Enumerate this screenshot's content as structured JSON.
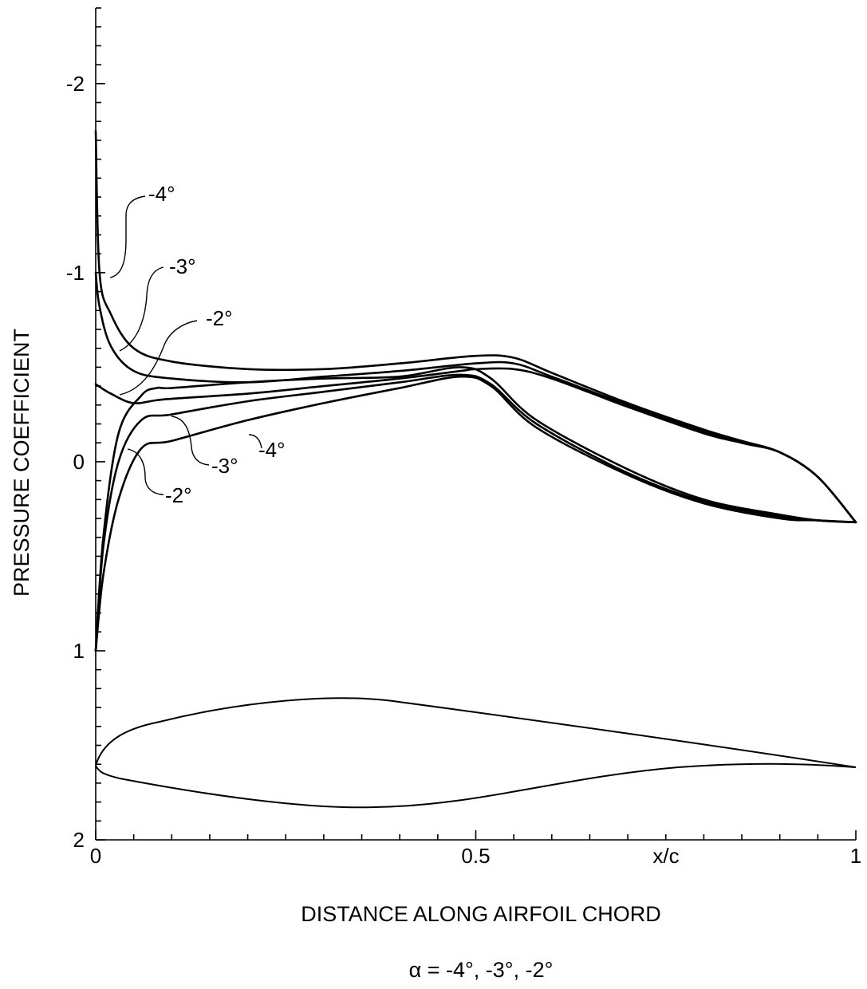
{
  "chart_data": {
    "type": "line",
    "xlabel": "DISTANCE ALONG AIRFOIL CHORD",
    "ylabel": "PRESSURE COEFFICIENT",
    "caption": "α = -4°, -3°, -2°",
    "x_axis_marker": "x/c",
    "xlim": [
      0,
      1
    ],
    "ylim": [
      2,
      -2.4
    ],
    "y_inverted": true,
    "x_ticks": [
      "0",
      "0.5",
      "1"
    ],
    "y_ticks": [
      "-2",
      "-1",
      "0",
      "1",
      "2"
    ],
    "series": [
      {
        "name": "-4°",
        "upper": {
          "x": [
            0,
            0.005,
            0.02,
            0.05,
            0.1,
            0.2,
            0.3,
            0.4,
            0.5,
            0.55,
            0.6,
            0.7,
            0.8,
            0.85,
            0.9,
            0.95,
            1.0
          ],
          "y": [
            -1.75,
            -1.0,
            -0.78,
            -0.6,
            -0.53,
            -0.49,
            -0.49,
            -0.52,
            -0.56,
            -0.55,
            -0.47,
            -0.31,
            -0.17,
            -0.11,
            -0.05,
            0.08,
            0.32
          ]
        },
        "lower": {
          "x": [
            0,
            0.01,
            0.03,
            0.06,
            0.1,
            0.2,
            0.3,
            0.4,
            0.48,
            0.52,
            0.58,
            0.7,
            0.8,
            0.9,
            0.95,
            1.0
          ],
          "y": [
            1.0,
            0.6,
            0.2,
            -0.07,
            -0.11,
            -0.22,
            -0.31,
            -0.39,
            -0.45,
            -0.4,
            -0.18,
            0.07,
            0.22,
            0.3,
            0.31,
            0.32
          ]
        }
      },
      {
        "name": "-3°",
        "upper": {
          "x": [
            0,
            0.005,
            0.02,
            0.05,
            0.1,
            0.2,
            0.3,
            0.4,
            0.5,
            0.55,
            0.6,
            0.7,
            0.8,
            0.85,
            0.9,
            0.95,
            1.0
          ],
          "y": [
            -1.0,
            -0.82,
            -0.61,
            -0.48,
            -0.44,
            -0.42,
            -0.45,
            -0.48,
            -0.52,
            -0.52,
            -0.45,
            -0.3,
            -0.16,
            -0.1,
            -0.05,
            0.08,
            0.32
          ]
        },
        "lower": {
          "x": [
            0,
            0.01,
            0.03,
            0.06,
            0.1,
            0.2,
            0.3,
            0.4,
            0.48,
            0.52,
            0.58,
            0.7,
            0.8,
            0.9,
            0.95,
            1.0
          ],
          "y": [
            1.0,
            0.45,
            0.0,
            -0.22,
            -0.25,
            -0.32,
            -0.37,
            -0.42,
            -0.46,
            -0.41,
            -0.2,
            0.06,
            0.21,
            0.29,
            0.31,
            0.32
          ]
        }
      },
      {
        "name": "-2°",
        "upper": {
          "x": [
            0,
            0.02,
            0.05,
            0.09,
            0.2,
            0.3,
            0.4,
            0.48,
            0.5,
            0.55,
            0.6,
            0.7,
            0.8,
            0.85,
            0.9,
            0.95,
            1.0
          ],
          "y": [
            -0.41,
            -0.36,
            -0.31,
            -0.33,
            -0.36,
            -0.4,
            -0.44,
            -0.48,
            -0.49,
            -0.49,
            -0.44,
            -0.29,
            -0.15,
            -0.1,
            -0.05,
            0.08,
            0.32
          ]
        },
        "lower": {
          "x": [
            0,
            0.01,
            0.03,
            0.06,
            0.08,
            0.1,
            0.2,
            0.3,
            0.4,
            0.48,
            0.52,
            0.58,
            0.7,
            0.8,
            0.9,
            0.95,
            1.0
          ],
          "y": [
            1.0,
            0.4,
            -0.15,
            -0.35,
            -0.39,
            -0.39,
            -0.42,
            -0.44,
            -0.45,
            -0.5,
            -0.44,
            -0.22,
            0.04,
            0.2,
            0.28,
            0.31,
            0.32
          ]
        }
      }
    ],
    "upper_labels": [
      "-4°",
      "-3°",
      "-2°"
    ],
    "lower_labels": [
      "-4°",
      "-3°",
      "-2°"
    ]
  }
}
